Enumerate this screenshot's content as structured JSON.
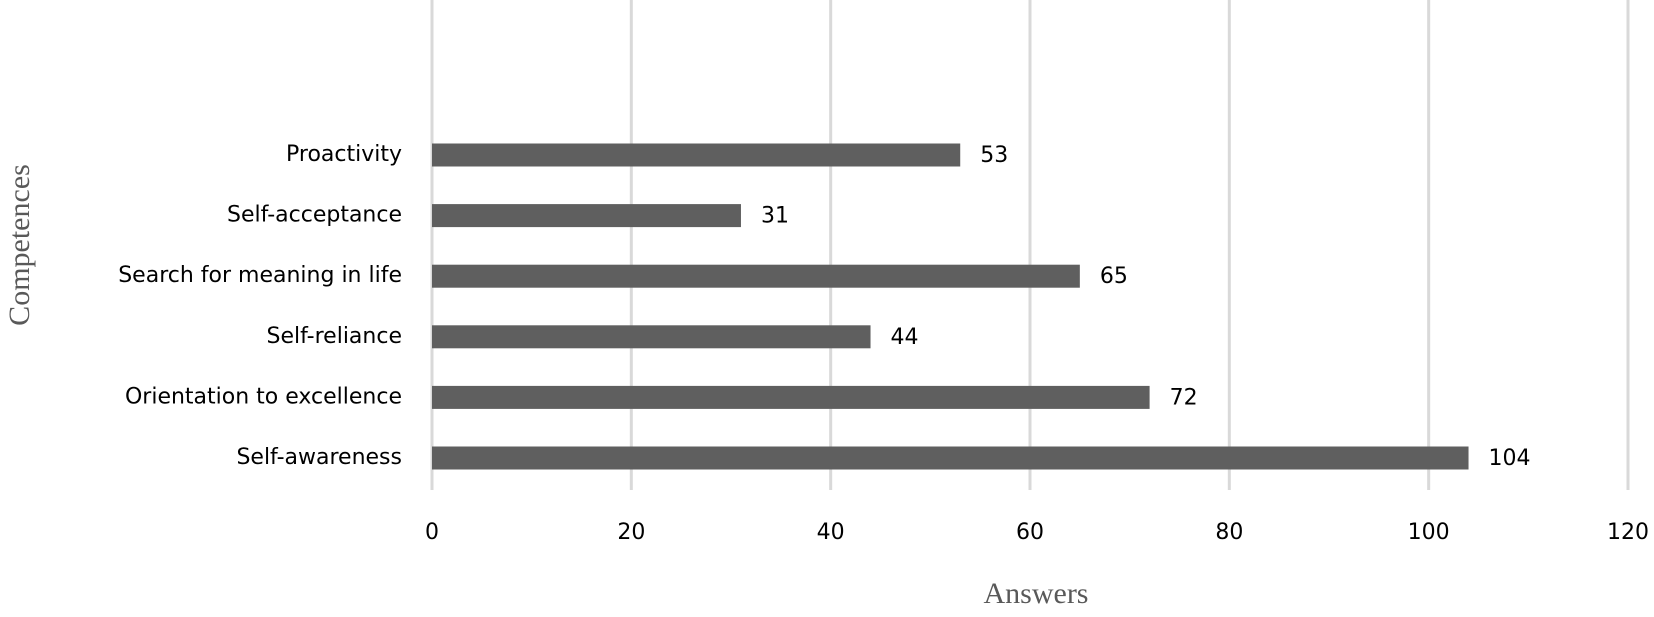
{
  "chart_data": {
    "type": "bar",
    "orientation": "horizontal",
    "categories": [
      "Proactivity",
      "Self-acceptance",
      "Search for meaning in life",
      "Self-reliance",
      "Orientation to excellence",
      "Self-awareness"
    ],
    "values": [
      53,
      31,
      65,
      44,
      72,
      104
    ],
    "color": "#5f5f5f",
    "xlabel": "Answers",
    "ylabel": "Competences",
    "xlim": [
      0,
      120
    ],
    "xticks": [
      0,
      20,
      40,
      60,
      80,
      100,
      120
    ],
    "grid": true,
    "data_labels": true
  }
}
